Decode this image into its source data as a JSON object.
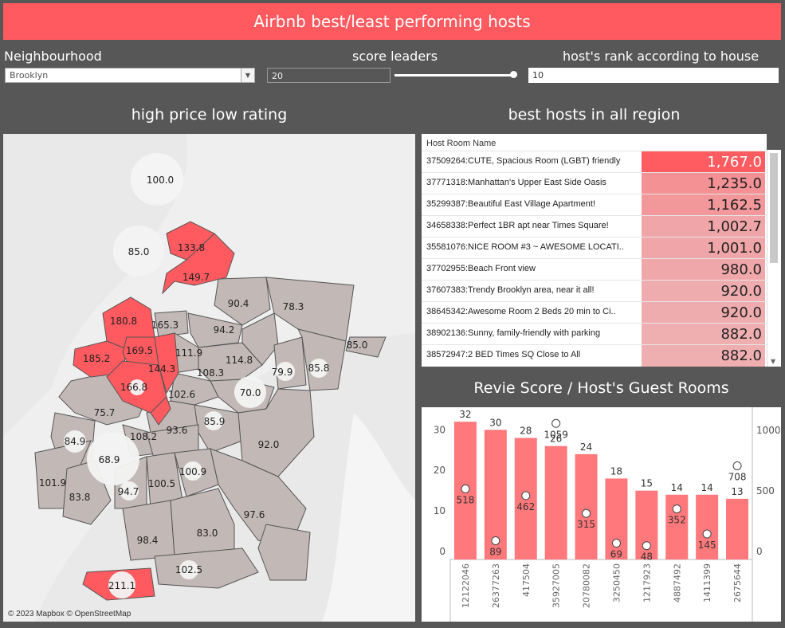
{
  "title": "Airbnb best/least performing hosts",
  "filters": {
    "neighbourhood_label": "Neighbourhood",
    "neighbourhood_value": "Brooklyn",
    "score_leaders_label": "score leaders",
    "score_leaders_value": "20",
    "score_leaders_slider": 1.0,
    "rank_label": "host's rank according to house",
    "rank_value": "10"
  },
  "colors": {
    "accent": "#ff5a5f",
    "neutral_region": "#c2b9b6",
    "background": "#575757"
  },
  "map": {
    "title": "high price low rating",
    "attribution": "© 2023 Mapbox © OpenStreetMap",
    "labels": [
      "100.0",
      "85.0",
      "133.8",
      "149.7",
      "90.4",
      "78.3",
      "180.8",
      "165.3",
      "94.2",
      "85.0",
      "185.2",
      "169.5",
      "111.9",
      "114.8",
      "79.9",
      "85.8",
      "144.3",
      "108.3",
      "166.8",
      "102.6",
      "70.0",
      "75.7",
      "85.9",
      "84.9",
      "108.2",
      "93.6",
      "92.0",
      "68.9",
      "101.9",
      "94.7",
      "100.5",
      "100.9",
      "83.8",
      "97.6",
      "98.4",
      "83.0",
      "102.5",
      "211.1"
    ]
  },
  "table": {
    "title": "best hosts in all region",
    "column_header": "Host Room Name",
    "rows": [
      {
        "name": "37509264:CUTE, Spacious Room (LGBT) friendly",
        "value": "1,767.0",
        "v": 1767.0
      },
      {
        "name": "37771318:Manhattan's Upper East Side Oasis",
        "value": "1,235.0",
        "v": 1235.0
      },
      {
        "name": "35299387:Beautiful East Village Apartment!",
        "value": "1,162.5",
        "v": 1162.5
      },
      {
        "name": "34658338:Perfect 1BR apt near Times Square!",
        "value": "1,002.7",
        "v": 1002.7
      },
      {
        "name": "35581076:NICE ROOM #3 ~ AWESOME LOCATI..",
        "value": "1,001.0",
        "v": 1001.0
      },
      {
        "name": "37702955:Beach Front view",
        "value": "980.0",
        "v": 980.0
      },
      {
        "name": "37607383:Trendy Brooklyn area, near it all!",
        "value": "920.0",
        "v": 920.0
      },
      {
        "name": "38645342:Awesome Room 2 Beds 20 min to Ci..",
        "value": "920.0",
        "v": 920.0
      },
      {
        "name": "38902136:Sunny, family-friendly with parking",
        "value": "882.0",
        "v": 882.0
      },
      {
        "name": "38572947:2 BED Times SQ Close to All",
        "value": "882.0",
        "v": 882.0
      }
    ]
  },
  "chart_data": {
    "type": "bar",
    "title": "Revie Score / Host's Guest Rooms",
    "categories": [
      "12122046",
      "26377263",
      "417504",
      "35927005",
      "20780082",
      "3250450",
      "1217923",
      "4887492",
      "1411399",
      "2675644"
    ],
    "series": [
      {
        "values": [
          32,
          30,
          28,
          26,
          24,
          18,
          15,
          14,
          14,
          13
        ],
        "axis": "left",
        "mark": "bar"
      },
      {
        "values": [
          518,
          89,
          462,
          1059,
          315,
          69,
          48,
          352,
          145,
          708
        ],
        "axis": "right",
        "mark": "circle"
      }
    ],
    "y_left_ticks": [
      0,
      10,
      20,
      30
    ],
    "y_right_ticks": [
      0,
      500,
      1000
    ],
    "ylim_left": [
      0,
      34
    ],
    "ylim_right": [
      0,
      1140
    ]
  }
}
